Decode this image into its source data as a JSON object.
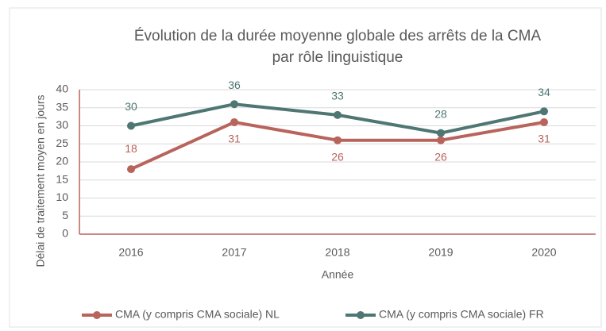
{
  "chart_data": {
    "type": "line",
    "title": [
      "Évolution de la durée moyenne globale des arrêts de la CMA",
      "par rôle linguistique"
    ],
    "x_label": "Année",
    "y_label": "Délai de traitement moyen en jours",
    "categories": [
      "2016",
      "2017",
      "2018",
      "2019",
      "2020"
    ],
    "series": [
      {
        "name": "CMA (y compris CMA sociale) NL",
        "color": "#b8635c",
        "values": [
          18,
          31,
          26,
          26,
          31
        ]
      },
      {
        "name": "CMA (y compris CMA sociale) FR",
        "color": "#4e7673",
        "values": [
          30,
          36,
          33,
          28,
          34
        ]
      }
    ],
    "ylim": [
      0,
      40
    ],
    "yticks": [
      0,
      5,
      10,
      15,
      20,
      25,
      30,
      35,
      40
    ],
    "grid": true,
    "legend": "bottom"
  }
}
